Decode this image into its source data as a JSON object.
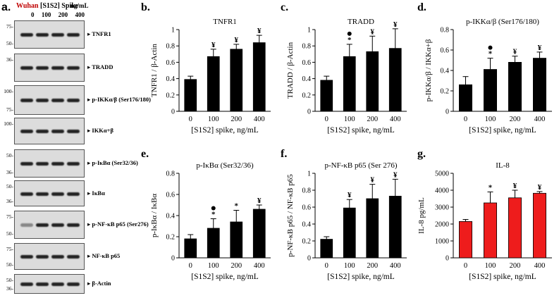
{
  "panel_letters": [
    "a.",
    "b.",
    "c.",
    "d.",
    "e.",
    "f.",
    "g."
  ],
  "western_blot": {
    "header_red": "Wuhan",
    "header_black": "[S1S2] Spike",
    "lanes": [
      "0",
      "100",
      "200",
      "400"
    ],
    "unit": "ng/mL",
    "blots": [
      {
        "label": "TNFR1",
        "markers": [
          "75-",
          "50-"
        ]
      },
      {
        "label": "TRADD",
        "markers": [
          "36-"
        ]
      },
      {
        "label": "p-IKKα/β (Ser176/180)",
        "markers": [
          "100-",
          "75-"
        ]
      },
      {
        "label": "IKKα+β",
        "markers": [
          "100-"
        ]
      },
      {
        "label": "p-IκBα (Ser32/36)",
        "markers": [
          "50-",
          "36-"
        ]
      },
      {
        "label": "IκBα",
        "markers": [
          "50-",
          "36-"
        ]
      },
      {
        "label": "p-NF-κB p65 (Ser276)",
        "markers": [
          "75-",
          "50-"
        ]
      },
      {
        "label": "NF-κB p65",
        "markers": [
          "75-",
          "50-"
        ]
      },
      {
        "label": "β-Actin",
        "markers": [
          "50-",
          "36-"
        ]
      }
    ]
  },
  "colors": {
    "bar_black": "#000000",
    "bar_red": "#ee1c1c",
    "header_red": "#c00000"
  },
  "chart_data": [
    {
      "panel": "b",
      "type": "bar",
      "title": "TNFR1",
      "ylabel": "TNFR1 / β-Actin",
      "xlabel": "[S1S2] spike, ng/mL",
      "categories": [
        "0",
        "100",
        "200",
        "400"
      ],
      "values": [
        0.39,
        0.67,
        0.76,
        0.84
      ],
      "errors": [
        0.04,
        0.09,
        0.06,
        0.09
      ],
      "ylim": [
        0,
        1
      ],
      "yticks": [
        "0",
        "0.2",
        "0.4",
        "0.6",
        "0.8",
        "1"
      ],
      "annotations": [
        "",
        "¥",
        "¥",
        "¥"
      ],
      "dots": [
        false,
        false,
        false,
        false
      ],
      "bar_color": "black"
    },
    {
      "panel": "c",
      "type": "bar",
      "title": "TRADD",
      "ylabel": "TRADD / β-Actin",
      "xlabel": "[S1S2] spike, ng/mL",
      "categories": [
        "0",
        "100",
        "200",
        "400"
      ],
      "values": [
        0.38,
        0.67,
        0.73,
        0.77
      ],
      "errors": [
        0.05,
        0.15,
        0.19,
        0.24
      ],
      "ylim": [
        0,
        1
      ],
      "yticks": [
        "0",
        "0.2",
        "0.4",
        "0.6",
        "0.8",
        "1"
      ],
      "annotations": [
        "",
        "*",
        "¥",
        "¥"
      ],
      "dots": [
        false,
        true,
        false,
        false
      ],
      "bar_color": "black"
    },
    {
      "panel": "d",
      "type": "bar",
      "title": "p-IKKα/β (Ser176/180)",
      "ylabel": "p-IKKα/β / IKKα+β",
      "xlabel": "[S1S2] spike, ng/mL",
      "categories": [
        "0",
        "100",
        "200",
        "400"
      ],
      "values": [
        0.26,
        0.41,
        0.48,
        0.52
      ],
      "errors": [
        0.08,
        0.11,
        0.06,
        0.06
      ],
      "ylim": [
        0,
        0.8
      ],
      "yticks": [
        "0",
        "0.2",
        "0.4",
        "0.6",
        "0.8"
      ],
      "annotations": [
        "",
        "*",
        "¥",
        "¥"
      ],
      "dots": [
        false,
        true,
        false,
        false
      ],
      "bar_color": "black"
    },
    {
      "panel": "e",
      "type": "bar",
      "title": "p-IκBα (Ser32/36)",
      "ylabel": "p-IκBα / IκBα",
      "xlabel": "[S1S2] spike, ng/mL",
      "categories": [
        "0",
        "100",
        "200",
        "400"
      ],
      "values": [
        0.18,
        0.28,
        0.34,
        0.46
      ],
      "errors": [
        0.04,
        0.09,
        0.11,
        0.04
      ],
      "ylim": [
        0,
        0.8
      ],
      "yticks": [
        "0",
        "0.2",
        "0.4",
        "0.6",
        "0.8"
      ],
      "annotations": [
        "",
        "*",
        "*",
        "¥"
      ],
      "dots": [
        false,
        true,
        false,
        false
      ],
      "bar_color": "black"
    },
    {
      "panel": "f",
      "type": "bar",
      "title": "p-NF-κB p65 (Ser 276)",
      "ylabel": "p-NF-κB p65 / NF-κB p65",
      "xlabel": "[S1S2] spike, ng/mL",
      "categories": [
        "0",
        "100",
        "200",
        "400"
      ],
      "values": [
        0.22,
        0.59,
        0.7,
        0.73
      ],
      "errors": [
        0.03,
        0.1,
        0.17,
        0.2
      ],
      "ylim": [
        0,
        1
      ],
      "yticks": [
        "0",
        "0.2",
        "0.4",
        "0.6",
        "0.8",
        "1"
      ],
      "annotations": [
        "",
        "¥",
        "¥",
        "¥"
      ],
      "dots": [
        false,
        false,
        false,
        false
      ],
      "bar_color": "black"
    },
    {
      "panel": "g",
      "type": "bar",
      "title": "IL-8",
      "ylabel": "IL-8 pg/mL",
      "xlabel": "[S1S2] spike, ng/mL",
      "categories": [
        "0",
        "100",
        "200",
        "400"
      ],
      "values": [
        2150,
        3250,
        3550,
        3820
      ],
      "errors": [
        120,
        650,
        450,
        100
      ],
      "ylim": [
        0,
        5000
      ],
      "yticks": [
        "0",
        "1000",
        "2000",
        "3000",
        "4000",
        "5000"
      ],
      "annotations": [
        "",
        "*",
        "¥",
        "¥"
      ],
      "dots": [
        false,
        false,
        false,
        false
      ],
      "bar_color": "red"
    }
  ]
}
